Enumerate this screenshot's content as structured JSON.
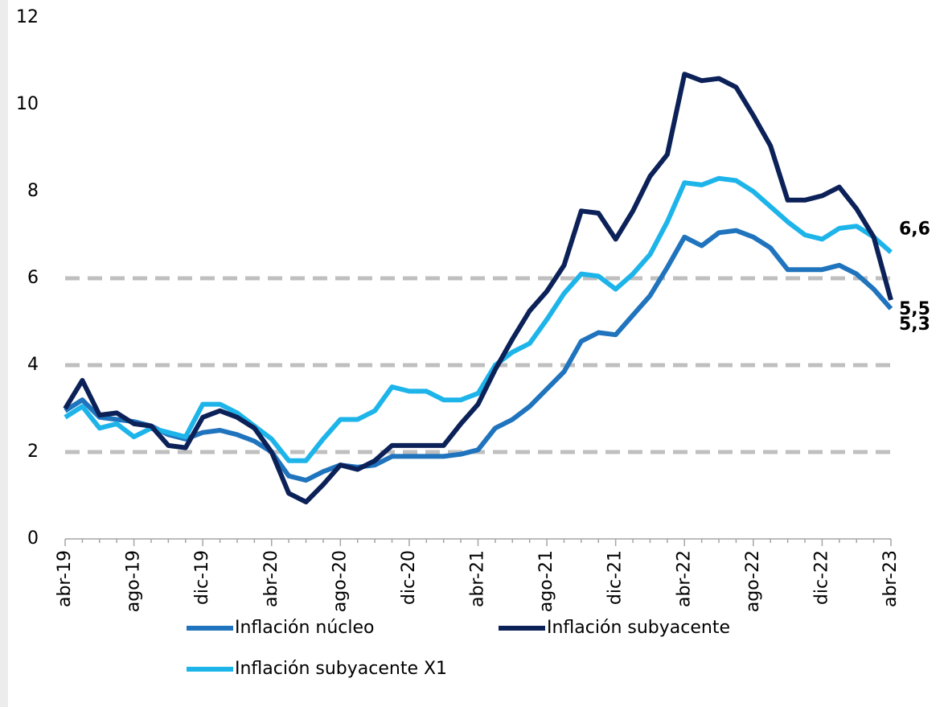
{
  "chart_data": {
    "type": "line",
    "categories": [
      "abr-19",
      null,
      null,
      null,
      "ago-19",
      null,
      null,
      null,
      "dic-19",
      null,
      null,
      null,
      "abr-20",
      null,
      null,
      null,
      "ago-20",
      null,
      null,
      null,
      "dic-20",
      null,
      null,
      null,
      "abr-21",
      null,
      null,
      null,
      "ago-21",
      null,
      null,
      null,
      "dic-21",
      null,
      null,
      null,
      "abr-22",
      null,
      null,
      null,
      "ago-22",
      null,
      null,
      null,
      "dic-22",
      null,
      null,
      null,
      "abr-23"
    ],
    "ylim": [
      0,
      12
    ],
    "yticks": [
      0,
      2,
      4,
      6,
      8,
      10,
      12
    ],
    "gridlines": [
      2,
      4,
      6
    ],
    "series": [
      {
        "name": "Inflación núcleo",
        "color": "#1f74bd",
        "end_label": "5,3",
        "end_label_color": "#4a80c2",
        "values": [
          2.95,
          3.2,
          2.8,
          2.75,
          2.7,
          2.6,
          2.4,
          2.3,
          2.45,
          2.5,
          2.4,
          2.25,
          2.0,
          1.45,
          1.35,
          1.55,
          1.7,
          1.65,
          1.7,
          1.9,
          1.9,
          1.9,
          1.9,
          1.95,
          2.05,
          2.55,
          2.75,
          3.05,
          3.45,
          3.85,
          4.55,
          4.75,
          4.7,
          5.15,
          5.6,
          6.25,
          6.95,
          6.75,
          7.05,
          7.1,
          6.95,
          6.7,
          6.2,
          6.2,
          6.2,
          6.3,
          6.1,
          5.75,
          5.3
        ]
      },
      {
        "name": "Inflación subyacente",
        "color": "#0b2158",
        "end_label": "5,5",
        "end_label_color": "#000000",
        "values": [
          3.0,
          3.65,
          2.85,
          2.9,
          2.65,
          2.6,
          2.15,
          2.1,
          2.8,
          2.95,
          2.8,
          2.55,
          2.0,
          1.05,
          0.85,
          1.25,
          1.7,
          1.6,
          1.8,
          2.15,
          2.15,
          2.15,
          2.15,
          2.65,
          3.1,
          3.9,
          4.6,
          5.25,
          5.7,
          6.3,
          7.55,
          7.5,
          6.9,
          7.55,
          8.35,
          8.85,
          10.7,
          10.55,
          10.6,
          10.4,
          9.75,
          9.05,
          7.8,
          7.8,
          7.9,
          8.1,
          7.6,
          6.95,
          5.5
        ]
      },
      {
        "name": "Inflación subyacente X1",
        "color": "#1db4ea",
        "end_label": "6,6",
        "end_label_color": "#4aa7cc",
        "values": [
          2.8,
          3.05,
          2.55,
          2.65,
          2.35,
          2.55,
          2.45,
          2.35,
          3.1,
          3.1,
          2.9,
          2.6,
          2.3,
          1.8,
          1.8,
          2.3,
          2.75,
          2.75,
          2.95,
          3.5,
          3.4,
          3.4,
          3.2,
          3.2,
          3.35,
          4.0,
          4.3,
          4.5,
          5.05,
          5.65,
          6.1,
          6.05,
          5.75,
          6.1,
          6.55,
          7.3,
          8.2,
          8.15,
          8.3,
          8.25,
          8.0,
          7.65,
          7.3,
          7.0,
          6.9,
          7.15,
          7.2,
          6.95,
          6.6
        ]
      }
    ]
  }
}
